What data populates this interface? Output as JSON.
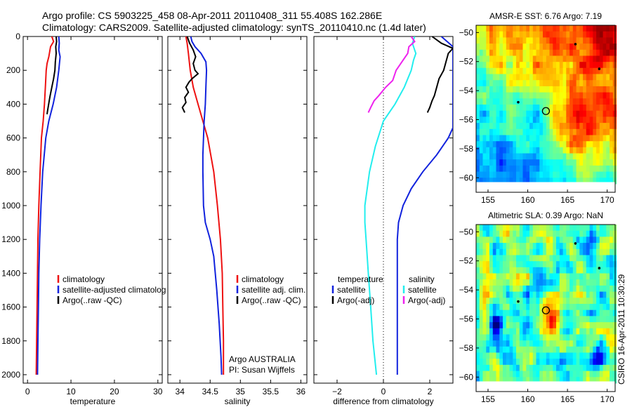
{
  "header": {
    "line1": "Argo profile: CS 5903225_458 08-Apr-2011 20110408_311 55.408S 162.286E",
    "line2": "Climatology: CARS2009. Satellite-adjusted climatology: synTS_20110410.nc (1.4d later)"
  },
  "side_label": "CSIRO 16-Apr-2011 10:30:29",
  "colors": {
    "red": "#ee1111",
    "blue": "#1122dd",
    "black": "#000000",
    "cyan": "#22eeee",
    "magenta": "#ee22ee"
  },
  "chart_data": [
    {
      "type": "line",
      "id": "temperature",
      "xlabel": "temperature",
      "xlim": [
        -1,
        31
      ],
      "ylim": [
        2050,
        0
      ],
      "xticks": [
        0,
        10,
        20,
        30
      ],
      "yticks": [
        0,
        200,
        400,
        600,
        800,
        1000,
        1200,
        1400,
        1600,
        1800,
        2000
      ],
      "legend": [
        "climatology",
        "satellite-adjusted climatolog",
        "Argo(..raw -QC)"
      ],
      "series": [
        {
          "color": "red",
          "points": [
            [
              5.6,
              0
            ],
            [
              6.0,
              30
            ],
            [
              5.3,
              60
            ],
            [
              4.9,
              120
            ],
            [
              4.5,
              160
            ],
            [
              4.3,
              200
            ],
            [
              4.1,
              300
            ],
            [
              3.9,
              400
            ],
            [
              3.6,
              500
            ],
            [
              3.2,
              600
            ],
            [
              2.9,
              800
            ],
            [
              2.6,
              1000
            ],
            [
              2.4,
              1200
            ],
            [
              2.3,
              1400
            ],
            [
              2.2,
              1600
            ],
            [
              2.1,
              1800
            ],
            [
              2.0,
              2000
            ]
          ]
        },
        {
          "color": "blue",
          "points": [
            [
              7.2,
              0
            ],
            [
              7.3,
              40
            ],
            [
              7.2,
              80
            ],
            [
              7.5,
              120
            ],
            [
              7.2,
              200
            ],
            [
              6.7,
              300
            ],
            [
              5.9,
              400
            ],
            [
              4.9,
              500
            ],
            [
              4.2,
              600
            ],
            [
              3.5,
              800
            ],
            [
              3.1,
              1000
            ],
            [
              2.8,
              1200
            ],
            [
              2.6,
              1400
            ],
            [
              2.5,
              1600
            ],
            [
              2.4,
              1800
            ],
            [
              2.3,
              2000
            ]
          ]
        },
        {
          "color": "black",
          "points": [
            [
              6.6,
              0
            ],
            [
              6.7,
              30
            ],
            [
              6.5,
              60
            ],
            [
              6.6,
              100
            ],
            [
              6.4,
              150
            ],
            [
              6.3,
              200
            ],
            [
              6.0,
              250
            ],
            [
              5.6,
              300
            ],
            [
              5.2,
              350
            ],
            [
              5.0,
              380
            ],
            [
              4.8,
              410
            ],
            [
              4.6,
              440
            ],
            [
              4.5,
              460
            ]
          ]
        }
      ]
    },
    {
      "type": "line",
      "id": "salinity",
      "xlabel": "salinity",
      "xlim": [
        33.8,
        36.1
      ],
      "ylim": [
        2050,
        0
      ],
      "xticks": [
        34,
        34.5,
        35,
        35.5,
        36
      ],
      "yticks": [
        0,
        200,
        400,
        600,
        800,
        1000,
        1200,
        1400,
        1600,
        1800,
        2000
      ],
      "legend": [
        "climatology",
        "satellite adj. clim.",
        "Argo(..raw -QC)"
      ],
      "annotation": [
        "Argo AUSTRALIA",
        "PI: Susan Wijffels"
      ],
      "series": [
        {
          "color": "red",
          "points": [
            [
              34.1,
              0
            ],
            [
              34.12,
              40
            ],
            [
              34.14,
              100
            ],
            [
              34.17,
              200
            ],
            [
              34.22,
              300
            ],
            [
              34.3,
              400
            ],
            [
              34.38,
              500
            ],
            [
              34.46,
              600
            ],
            [
              34.56,
              800
            ],
            [
              34.62,
              1000
            ],
            [
              34.67,
              1200
            ],
            [
              34.7,
              1400
            ],
            [
              34.71,
              1600
            ],
            [
              34.72,
              1800
            ],
            [
              34.72,
              2000
            ]
          ]
        },
        {
          "color": "blue",
          "points": [
            [
              34.18,
              0
            ],
            [
              34.2,
              30
            ],
            [
              34.25,
              60
            ],
            [
              34.35,
              100
            ],
            [
              34.43,
              150
            ],
            [
              34.44,
              200
            ],
            [
              34.43,
              300
            ],
            [
              34.42,
              400
            ],
            [
              34.4,
              500
            ],
            [
              34.39,
              600
            ],
            [
              34.38,
              700
            ],
            [
              34.38,
              800
            ],
            [
              34.39,
              1000
            ],
            [
              34.42,
              1100
            ],
            [
              34.5,
              1200
            ],
            [
              34.56,
              1300
            ],
            [
              34.61,
              1500
            ],
            [
              34.65,
              1700
            ],
            [
              34.68,
              1900
            ],
            [
              34.69,
              2000
            ]
          ]
        },
        {
          "color": "black",
          "points": [
            [
              34.12,
              0
            ],
            [
              34.16,
              40
            ],
            [
              34.22,
              80
            ],
            [
              34.26,
              120
            ],
            [
              34.22,
              160
            ],
            [
              34.25,
              200
            ],
            [
              34.3,
              220
            ],
            [
              34.2,
              250
            ],
            [
              34.15,
              270
            ],
            [
              34.1,
              300
            ],
            [
              34.14,
              330
            ],
            [
              34.08,
              360
            ],
            [
              34.1,
              390
            ],
            [
              34.04,
              420
            ],
            [
              34.08,
              450
            ]
          ]
        }
      ]
    },
    {
      "type": "line",
      "id": "difference",
      "xlabel": "difference from climatology",
      "xlim": [
        -3,
        3
      ],
      "ylim": [
        2050,
        0
      ],
      "xticks": [
        -2,
        0,
        2
      ],
      "yticks": [
        0,
        200,
        400,
        600,
        800,
        1000,
        1200,
        1400,
        1600,
        1800,
        2000
      ],
      "legend_left": {
        "title": "temperature",
        "entries": [
          "satellite",
          "Argo(-adj)"
        ]
      },
      "legend_right": {
        "title": "salinity",
        "entries": [
          "satellite",
          "Argo(-adj)"
        ]
      },
      "series": [
        {
          "color": "cyan",
          "points": [
            [
              1.35,
              0
            ],
            [
              1.25,
              40
            ],
            [
              1.35,
              80
            ],
            [
              1.4,
              100
            ],
            [
              1.3,
              140
            ],
            [
              1.2,
              200
            ],
            [
              0.9,
              300
            ],
            [
              0.5,
              400
            ],
            [
              0.0,
              500
            ],
            [
              -0.35,
              650
            ],
            [
              -0.6,
              800
            ],
            [
              -0.8,
              1000
            ],
            [
              -0.8,
              1100
            ],
            [
              -0.75,
              1200
            ],
            [
              -0.65,
              1400
            ],
            [
              -0.55,
              1600
            ],
            [
              -0.45,
              1800
            ],
            [
              -0.3,
              2000
            ]
          ]
        },
        {
          "color": "magenta",
          "points": [
            [
              1.2,
              0
            ],
            [
              1.35,
              30
            ],
            [
              1.1,
              60
            ],
            [
              1.05,
              100
            ],
            [
              0.8,
              150
            ],
            [
              0.55,
              200
            ],
            [
              0.4,
              260
            ],
            [
              0.1,
              300
            ],
            [
              -0.2,
              350
            ],
            [
              -0.4,
              380
            ],
            [
              -0.55,
              420
            ],
            [
              -0.65,
              450
            ]
          ]
        },
        {
          "color": "blue",
          "points": [
            [
              2.5,
              0
            ],
            [
              3.0,
              60
            ],
            [
              3.0,
              540
            ],
            [
              2.8,
              600
            ],
            [
              2.3,
              700
            ],
            [
              1.7,
              800
            ],
            [
              1.2,
              900
            ],
            [
              0.85,
              1000
            ],
            [
              0.65,
              1100
            ],
            [
              0.6,
              1200
            ],
            [
              0.6,
              1500
            ],
            [
              0.6,
              1800
            ],
            [
              0.6,
              2000
            ]
          ]
        },
        {
          "color": "black",
          "points": [
            [
              2.1,
              0
            ],
            [
              2.5,
              40
            ],
            [
              3.0,
              70
            ],
            [
              2.8,
              100
            ],
            [
              2.7,
              150
            ],
            [
              2.6,
              200
            ],
            [
              2.4,
              250
            ],
            [
              2.3,
              300
            ],
            [
              2.2,
              350
            ],
            [
              2.1,
              380
            ],
            [
              2.0,
              420
            ],
            [
              1.9,
              450
            ]
          ]
        }
      ]
    },
    {
      "type": "heatmap",
      "id": "sst",
      "title": "AMSR-E SST: 6.76 Argo: 7.19",
      "xlim": [
        153.5,
        171
      ],
      "ylim": [
        -61,
        -49.5
      ],
      "xticks": [
        155,
        160,
        165,
        170
      ],
      "yticks": [
        -50,
        -52,
        -54,
        -56,
        -58,
        -60
      ],
      "marker": {
        "lon": 162.286,
        "lat": -55.408
      },
      "dots": [
        [
          166,
          -50.8
        ],
        [
          169,
          -52.5
        ],
        [
          158.8,
          -54.8
        ]
      ]
    },
    {
      "type": "heatmap",
      "id": "sla",
      "title": "Altimetric SLA: 0.39 Argo: NaN",
      "xlim": [
        153.5,
        171
      ],
      "ylim": [
        -61,
        -49.5
      ],
      "xticks": [
        155,
        160,
        165,
        170
      ],
      "yticks": [
        -50,
        -52,
        -54,
        -56,
        -58,
        -60
      ],
      "marker": {
        "lon": 162.286,
        "lat": -55.408
      },
      "dots": [
        [
          166,
          -50.8
        ],
        [
          169,
          -52.5
        ],
        [
          158.8,
          -54.8
        ]
      ]
    }
  ]
}
